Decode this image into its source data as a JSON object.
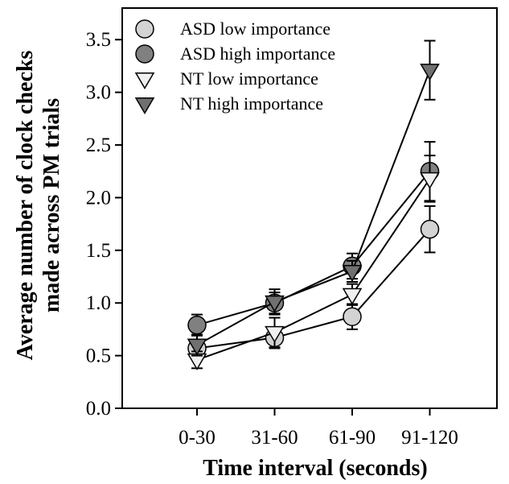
{
  "chart_data": {
    "type": "line",
    "title": "",
    "xlabel": "Time interval (seconds)",
    "ylabel": [
      "Average number of clock checks",
      "made across PM trials"
    ],
    "categories": [
      "0-30",
      "31-60",
      "61-90",
      "91-120"
    ],
    "ylim": [
      0.0,
      3.8
    ],
    "yticks": [
      "0.0",
      "0.5",
      "1.0",
      "1.5",
      "2.0",
      "2.5",
      "3.0",
      "3.5"
    ],
    "grid": false,
    "legend_position": "top-left",
    "series": [
      {
        "name": "ASD low importance",
        "marker": "circle",
        "color": "#d3d3d3",
        "values": [
          0.57,
          0.67,
          0.87,
          1.7
        ],
        "errors": [
          0.05,
          0.1,
          0.12,
          0.22
        ]
      },
      {
        "name": "ASD high importance",
        "marker": "circle",
        "color": "#808080",
        "values": [
          0.79,
          1.0,
          1.35,
          2.25
        ],
        "errors": [
          0.1,
          0.1,
          0.12,
          0.28
        ]
      },
      {
        "name": "NT low importance",
        "marker": "triangle-down",
        "color": "#f0f0f0",
        "values": [
          0.46,
          0.72,
          1.08,
          2.18
        ],
        "errors": [
          0.08,
          0.14,
          0.1,
          0.22
        ]
      },
      {
        "name": "NT high importance",
        "marker": "triangle-down",
        "color": "#707070",
        "values": [
          0.6,
          1.01,
          1.3,
          3.21
        ],
        "errors": [
          0.1,
          0.12,
          0.1,
          0.28
        ]
      }
    ]
  }
}
